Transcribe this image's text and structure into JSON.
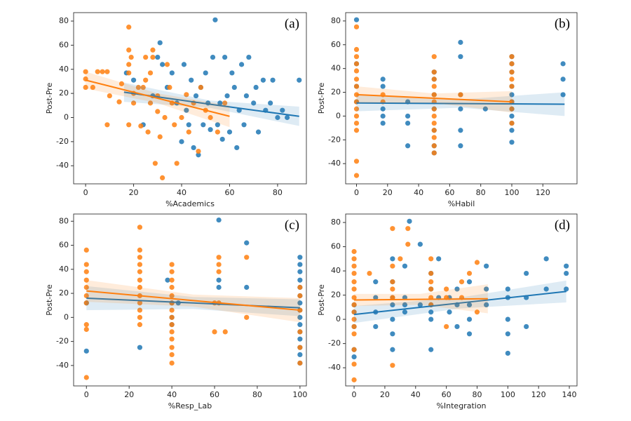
{
  "chart_data": [
    {
      "type": "scatter",
      "label": "(a)",
      "x_label": "%Academics",
      "y_label": "Post-Pre",
      "xlim": [
        -5,
        92
      ],
      "ylim": [
        -55,
        87
      ],
      "xticks": [
        0,
        20,
        40,
        60,
        80
      ],
      "yticks": [
        -40,
        -20,
        0,
        20,
        40,
        60,
        80
      ],
      "series": [
        {
          "color": "#1f77b4",
          "x": [
            17,
            20,
            24,
            28,
            30,
            31,
            32,
            34,
            36,
            38,
            40,
            41,
            42,
            43,
            44,
            45,
            46,
            47,
            48,
            49,
            50,
            51,
            52,
            53,
            54,
            55,
            56,
            57,
            58,
            59,
            60,
            61,
            62,
            63,
            64,
            65,
            66,
            67,
            68,
            70,
            71,
            72,
            74,
            75,
            77,
            78,
            80,
            82,
            84,
            89
          ],
          "values": [
            37,
            31,
            -6,
            18,
            50,
            62,
            44,
            25,
            37,
            12,
            -20,
            44,
            6,
            -6,
            31,
            -25,
            18,
            -31,
            25,
            -6,
            37,
            12,
            -10,
            50,
            81,
            -6,
            12,
            -18,
            50,
            18,
            -12,
            37,
            25,
            -25,
            6,
            44,
            -6,
            18,
            50,
            12,
            25,
            -12,
            31,
            6,
            12,
            31,
            0,
            6,
            0,
            31
          ],
          "fit": {
            "x": [
              16,
              52,
              89
            ],
            "values": [
              21,
              11,
              1
            ],
            "low": [
              13,
              8,
              -7
            ],
            "high": [
              29,
              14,
              9
            ]
          }
        },
        {
          "color": "#ff7f0e",
          "x": [
            0,
            0,
            0,
            3,
            5,
            7,
            9,
            10,
            9,
            14,
            15,
            18,
            18,
            19,
            18,
            18,
            18,
            20,
            20,
            22,
            23,
            24,
            25,
            25,
            26,
            27,
            27,
            28,
            28,
            29,
            30,
            30,
            31,
            32,
            33,
            34,
            35,
            36,
            37,
            38,
            40,
            42,
            43,
            45,
            47,
            48,
            50,
            52,
            55,
            58
          ],
          "values": [
            38,
            32,
            25,
            25,
            38,
            38,
            38,
            18,
            -6,
            13,
            28,
            75,
            56,
            50,
            44,
            37,
            -6,
            12,
            20,
            25,
            -7,
            25,
            50,
            31,
            -12,
            37,
            12,
            50,
            56,
            -38,
            5,
            18,
            -16,
            -50,
            0,
            44,
            25,
            12,
            -6,
            -38,
            0,
            19,
            -12,
            12,
            -28,
            25,
            6,
            0,
            -12,
            12
          ],
          "fit": {
            "x": [
              0,
              30,
              60
            ],
            "values": [
              31,
              16,
              1
            ],
            "low": [
              24,
              12,
              -8
            ],
            "high": [
              38,
              20,
              10
            ]
          }
        }
      ]
    },
    {
      "type": "scatter",
      "label": "(b)",
      "x_label": "%Habil",
      "y_label": "Post-Pre",
      "xlim": [
        -7,
        142
      ],
      "ylim": [
        -57,
        87
      ],
      "xticks": [
        0,
        20,
        40,
        60,
        80,
        100,
        120
      ],
      "yticks": [
        -40,
        -20,
        0,
        20,
        40,
        60,
        80
      ],
      "series": [
        {
          "color": "#1f77b4",
          "x": [
            0,
            0,
            0,
            0,
            17,
            17,
            17,
            17,
            17,
            33,
            33,
            33,
            33,
            50,
            50,
            50,
            50,
            50,
            50,
            50,
            67,
            67,
            67,
            67,
            67,
            67,
            83,
            100,
            100,
            100,
            100,
            100,
            100,
            100,
            100,
            100,
            100,
            100,
            133,
            133,
            133
          ],
          "values": [
            81,
            44,
            25,
            12,
            31,
            25,
            6,
            0,
            -6,
            12,
            0,
            -6,
            -25,
            37,
            31,
            18,
            6,
            -12,
            -25,
            -31,
            62,
            50,
            18,
            6,
            -12,
            -25,
            6,
            50,
            44,
            37,
            25,
            18,
            12,
            6,
            0,
            -6,
            -12,
            -22,
            44,
            31,
            18
          ],
          "fit": {
            "x": [
              0,
              67,
              134
            ],
            "values": [
              11,
              10.5,
              10
            ],
            "low": [
              4,
              7,
              0
            ],
            "high": [
              18,
              14,
              20
            ]
          }
        },
        {
          "color": "#ff7f0e",
          "x": [
            0,
            0,
            0,
            0,
            0,
            0,
            0,
            0,
            0,
            0,
            0,
            0,
            0,
            0,
            0,
            17,
            17,
            50,
            50,
            50,
            50,
            50,
            50,
            50,
            50,
            50,
            50,
            50,
            50,
            50,
            67,
            100,
            100,
            100,
            100,
            100,
            100,
            100,
            100
          ],
          "values": [
            56,
            50,
            44,
            38,
            31,
            25,
            18,
            12,
            6,
            0,
            -6,
            -12,
            -38,
            -50,
            75,
            18,
            12,
            50,
            37,
            31,
            25,
            18,
            12,
            6,
            0,
            -6,
            -12,
            -18,
            -25,
            -31,
            18,
            50,
            44,
            37,
            31,
            25,
            12,
            6,
            -6
          ],
          "fit": {
            "x": [
              0,
              50,
              100
            ],
            "values": [
              18,
              15,
              12
            ],
            "low": [
              11,
              11,
              3
            ],
            "high": [
              25,
              19,
              21
            ]
          }
        }
      ]
    },
    {
      "type": "scatter",
      "label": "(c)",
      "x_label": "%Resp_Lab",
      "y_label": "Post-Pre",
      "xlim": [
        -6,
        103
      ],
      "ylim": [
        -57,
        86
      ],
      "xticks": [
        0,
        20,
        40,
        60,
        80,
        100
      ],
      "yticks": [
        -40,
        -20,
        0,
        20,
        40,
        60,
        80
      ],
      "series": [
        {
          "color": "#1f77b4",
          "x": [
            0,
            0,
            25,
            38,
            40,
            40,
            40,
            43,
            62,
            62,
            62,
            75,
            75,
            100,
            100,
            100,
            100,
            100,
            100,
            100,
            100,
            100,
            100,
            100,
            100,
            100,
            100,
            100
          ],
          "values": [
            -28,
            12,
            -25,
            31,
            12,
            0,
            -6,
            12,
            81,
            31,
            25,
            62,
            25,
            50,
            44,
            38,
            31,
            25,
            18,
            12,
            6,
            0,
            -6,
            -12,
            -18,
            -25,
            -31,
            -38
          ],
          "fit": {
            "x": [
              0,
              50,
              100
            ],
            "values": [
              16,
              12,
              8
            ],
            "low": [
              6,
              7,
              1
            ],
            "high": [
              26,
              17,
              15
            ]
          }
        },
        {
          "color": "#ff7f0e",
          "x": [
            0,
            0,
            0,
            0,
            0,
            0,
            0,
            0,
            0,
            0,
            25,
            25,
            25,
            25,
            25,
            25,
            25,
            25,
            25,
            25,
            25,
            25,
            40,
            40,
            40,
            40,
            40,
            40,
            40,
            40,
            40,
            40,
            40,
            40,
            40,
            40,
            60,
            60,
            62,
            62,
            62,
            62,
            65,
            75,
            75,
            100,
            100,
            100,
            100,
            100,
            100
          ],
          "values": [
            56,
            44,
            38,
            31,
            25,
            18,
            12,
            -6,
            -10,
            -50,
            75,
            56,
            50,
            44,
            38,
            31,
            25,
            18,
            12,
            6,
            0,
            -6,
            44,
            38,
            31,
            25,
            18,
            12,
            6,
            0,
            -6,
            -12,
            -18,
            -25,
            -31,
            -38,
            -12,
            12,
            50,
            44,
            38,
            12,
            -12,
            50,
            0,
            25,
            18,
            6,
            -12,
            -25,
            -38
          ],
          "fit": {
            "x": [
              0,
              50,
              100
            ],
            "values": [
              22,
              14,
              6
            ],
            "low": [
              13,
              9,
              -4
            ],
            "high": [
              31,
              19,
              16
            ]
          }
        }
      ]
    },
    {
      "type": "scatter",
      "label": "(d)",
      "x_label": "%Integration",
      "y_label": "Post-Pre",
      "xlim": [
        -5.5,
        145
      ],
      "ylim": [
        -55,
        87
      ],
      "xticks": [
        0,
        20,
        40,
        60,
        80,
        100,
        120,
        140
      ],
      "yticks": [
        -40,
        -20,
        0,
        20,
        40,
        60,
        80
      ],
      "series": [
        {
          "color": "#1f77b4",
          "x": [
            0,
            0,
            0,
            0,
            0,
            14,
            14,
            14,
            14,
            25,
            25,
            25,
            25,
            25,
            25,
            25,
            33,
            33,
            33,
            33,
            36,
            43,
            43,
            50,
            50,
            50,
            50,
            50,
            50,
            55,
            55,
            62,
            62,
            67,
            67,
            67,
            75,
            75,
            75,
            75,
            86,
            86,
            86,
            100,
            100,
            100,
            100,
            100,
            112,
            112,
            112,
            125,
            125,
            138,
            138,
            138
          ],
          "values": [
            12,
            6,
            -6,
            -25,
            -31,
            31,
            18,
            6,
            -6,
            50,
            31,
            18,
            12,
            0,
            -12,
            -25,
            44,
            18,
            12,
            6,
            81,
            62,
            12,
            38,
            25,
            12,
            6,
            0,
            -25,
            50,
            18,
            18,
            6,
            25,
            12,
            -6,
            31,
            12,
            0,
            -12,
            44,
            25,
            12,
            25,
            18,
            0,
            -12,
            -28,
            38,
            18,
            -6,
            50,
            25,
            38,
            44,
            25
          ],
          "fit": {
            "x": [
              0,
              69,
              138
            ],
            "values": [
              4,
              13.5,
              23
            ],
            "low": [
              -3,
              9,
              14
            ],
            "high": [
              11,
              18,
              32
            ]
          }
        },
        {
          "color": "#ff7f0e",
          "x": [
            0,
            0,
            0,
            0,
            0,
            0,
            0,
            0,
            0,
            0,
            0,
            0,
            0,
            0,
            0,
            10,
            25,
            25,
            25,
            25,
            25,
            25,
            35,
            35,
            30,
            50,
            50,
            50,
            50,
            50,
            50,
            60,
            60,
            60,
            70,
            70,
            75,
            80,
            80
          ],
          "values": [
            56,
            50,
            44,
            38,
            31,
            25,
            18,
            12,
            6,
            0,
            -6,
            -12,
            -25,
            -37,
            -50,
            38,
            75,
            44,
            31,
            25,
            18,
            -38,
            75,
            62,
            50,
            50,
            38,
            31,
            25,
            18,
            12,
            25,
            18,
            -6,
            31,
            18,
            38,
            47,
            6
          ],
          "fit": {
            "x": [
              0,
              43,
              87
            ],
            "values": [
              16,
              16.5,
              17
            ],
            "low": [
              11,
              12,
              5
            ],
            "high": [
              21,
              21,
              29
            ]
          }
        }
      ]
    }
  ]
}
